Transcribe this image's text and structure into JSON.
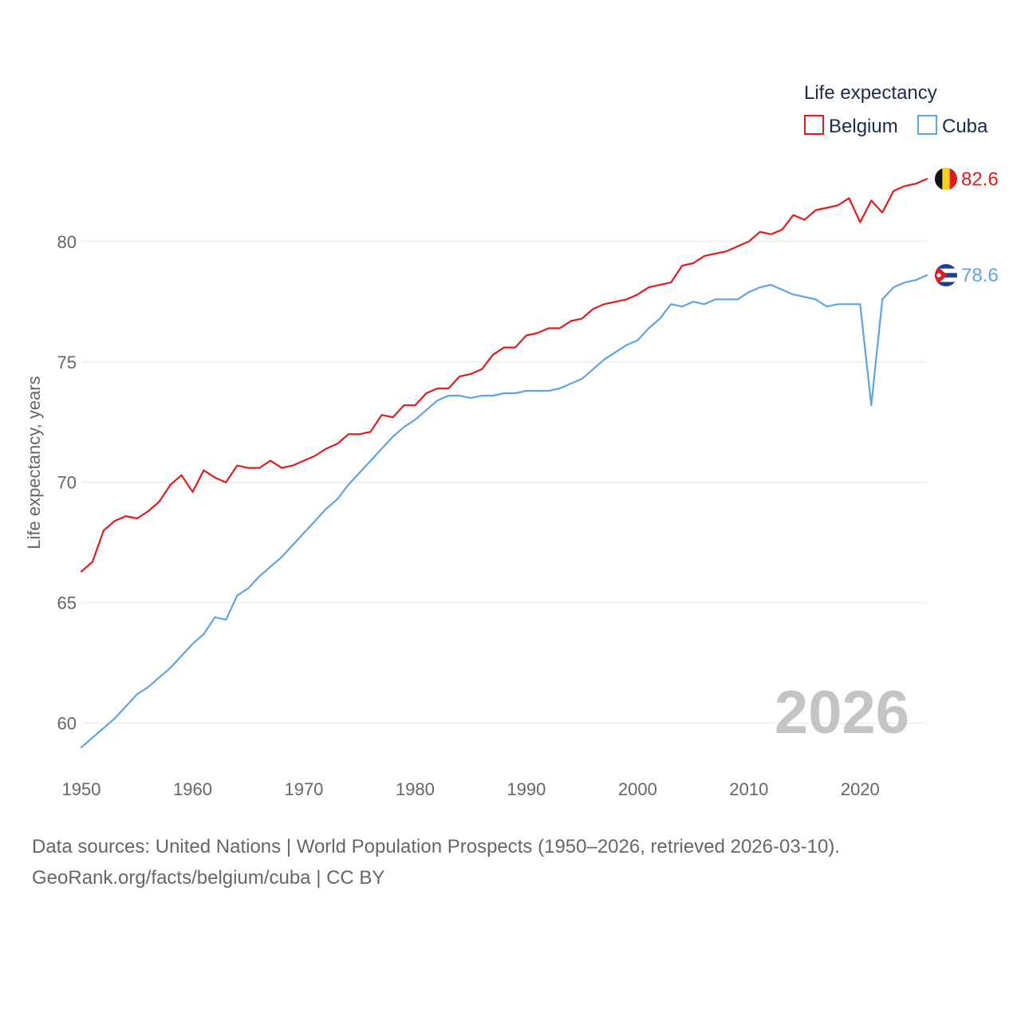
{
  "chart_data": {
    "type": "line",
    "title": "Life expectancy",
    "ylabel": "Life expectancy, years",
    "xlabel": "",
    "xlim": [
      1950,
      2026
    ],
    "ylim": [
      58.5,
      84
    ],
    "x_ticks": [
      1950,
      1960,
      1970,
      1980,
      1990,
      2000,
      2010,
      2020
    ],
    "y_ticks": [
      60,
      65,
      70,
      75,
      80
    ],
    "grid": true,
    "legend_position": "top-right",
    "current_year_label": "2026",
    "x": [
      1950,
      1951,
      1952,
      1953,
      1954,
      1955,
      1956,
      1957,
      1958,
      1959,
      1960,
      1961,
      1962,
      1963,
      1964,
      1965,
      1966,
      1967,
      1968,
      1969,
      1970,
      1971,
      1972,
      1973,
      1974,
      1975,
      1976,
      1977,
      1978,
      1979,
      1980,
      1981,
      1982,
      1983,
      1984,
      1985,
      1986,
      1987,
      1988,
      1989,
      1990,
      1991,
      1992,
      1993,
      1994,
      1995,
      1996,
      1997,
      1998,
      1999,
      2000,
      2001,
      2002,
      2003,
      2004,
      2005,
      2006,
      2007,
      2008,
      2009,
      2010,
      2011,
      2012,
      2013,
      2014,
      2015,
      2016,
      2017,
      2018,
      2019,
      2020,
      2021,
      2022,
      2023,
      2024,
      2025,
      2026
    ],
    "series": [
      {
        "name": "Belgium",
        "color": "#e31a1c",
        "end_label": "82.6",
        "flag": "belgium-flag",
        "values": [
          66.3,
          66.7,
          68.0,
          68.4,
          68.6,
          68.5,
          68.8,
          69.2,
          69.9,
          70.3,
          69.6,
          70.5,
          70.2,
          70.0,
          70.7,
          70.6,
          70.6,
          70.9,
          70.6,
          70.7,
          70.9,
          71.1,
          71.4,
          71.6,
          72.0,
          72.0,
          72.1,
          72.8,
          72.7,
          73.2,
          73.2,
          73.7,
          73.9,
          73.9,
          74.4,
          74.5,
          74.7,
          75.3,
          75.6,
          75.6,
          76.1,
          76.2,
          76.4,
          76.4,
          76.7,
          76.8,
          77.2,
          77.4,
          77.5,
          77.6,
          77.8,
          78.1,
          78.2,
          78.3,
          79.0,
          79.1,
          79.4,
          79.5,
          79.6,
          79.8,
          80.0,
          80.4,
          80.3,
          80.5,
          81.1,
          80.9,
          81.3,
          81.4,
          81.5,
          81.8,
          80.8,
          81.7,
          81.2,
          82.1,
          82.3,
          82.4,
          82.6
        ]
      },
      {
        "name": "Cuba",
        "color": "#5da3e6",
        "end_label": "78.6",
        "flag": "cuba-flag",
        "values": [
          59.0,
          59.4,
          59.8,
          60.2,
          60.7,
          61.2,
          61.5,
          61.9,
          62.3,
          62.8,
          63.3,
          63.7,
          64.4,
          64.3,
          65.3,
          65.6,
          66.1,
          66.5,
          66.9,
          67.4,
          67.9,
          68.4,
          68.9,
          69.3,
          69.9,
          70.4,
          70.9,
          71.4,
          71.9,
          72.3,
          72.6,
          73.0,
          73.4,
          73.6,
          73.6,
          73.5,
          73.6,
          73.6,
          73.7,
          73.7,
          73.8,
          73.8,
          73.8,
          73.9,
          74.1,
          74.3,
          74.7,
          75.1,
          75.4,
          75.7,
          75.9,
          76.4,
          76.8,
          77.4,
          77.3,
          77.5,
          77.4,
          77.6,
          77.6,
          77.6,
          77.9,
          78.1,
          78.2,
          78.0,
          77.8,
          77.7,
          77.6,
          77.3,
          77.4,
          77.4,
          77.4,
          73.2,
          77.6,
          78.1,
          78.3,
          78.4,
          78.6
        ]
      }
    ]
  },
  "source": {
    "line1": "Data sources: United Nations | World Population Prospects (1950–2026, retrieved 2026-03-10).",
    "line2": "GeoRank.org/facts/belgium/cuba | CC BY"
  }
}
